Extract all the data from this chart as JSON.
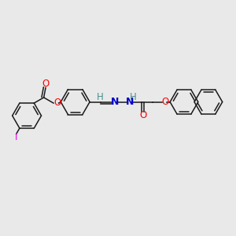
{
  "bg": "#e9e9e9",
  "figsize": [
    3.0,
    3.0
  ],
  "dpi": 100,
  "bond_color": "#1a1a1a",
  "atom_colors": {
    "O": "#ff0000",
    "I": "#ee00ee",
    "N": "#0000cc",
    "H_imine": "#4a9090",
    "H_amine": "#4a9090"
  },
  "ring_r": 0.062,
  "naph_r": 0.058
}
